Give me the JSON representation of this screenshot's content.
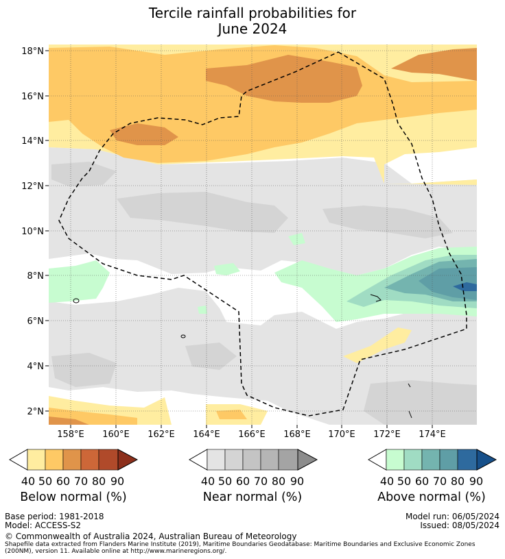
{
  "title_line1": "Tercile rainfall probabilities for",
  "title_line2": "June 2024",
  "map": {
    "lat_ticks": [
      "18°N",
      "16°N",
      "14°N",
      "12°N",
      "10°N",
      "8°N",
      "6°N",
      "4°N",
      "2°N"
    ],
    "lon_ticks": [
      "158°E",
      "160°E",
      "162°E",
      "164°E",
      "166°E",
      "168°E",
      "170°E",
      "172°E",
      "174°E"
    ],
    "colors": {
      "below_40": "#ffeda0",
      "below_50": "#fec965",
      "below_60": "#e0944a",
      "near_40": "#e4e4e4",
      "near_50": "#d4d4d4",
      "above_40": "#c7fcd0",
      "above_50": "#a0dcc3",
      "above_60": "#74b4af",
      "above_70": "#5f9ea6",
      "above_80": "#2e6a9e"
    }
  },
  "legends": [
    {
      "label": "Below normal (%)",
      "ticks": [
        "40",
        "50",
        "60",
        "70",
        "80",
        "90"
      ],
      "colors": [
        "#ffeda0",
        "#fec965",
        "#e0944a",
        "#cd6738",
        "#b04a2a",
        "#8c2f1b"
      ]
    },
    {
      "label": "Near normal (%)",
      "ticks": [
        "40",
        "50",
        "60",
        "70",
        "80",
        "90"
      ],
      "colors": [
        "#e4e4e4",
        "#d4d4d4",
        "#c4c4c4",
        "#b5b5b5",
        "#a4a4a4",
        "#8c8c8c"
      ]
    },
    {
      "label": "Above normal (%)",
      "ticks": [
        "40",
        "50",
        "60",
        "70",
        "80",
        "90"
      ],
      "colors": [
        "#c7fcd0",
        "#a0dcc3",
        "#74b4af",
        "#5f9ea6",
        "#2e6a9e",
        "#17508a"
      ]
    }
  ],
  "footer": {
    "base_period": "Base period: 1981-2018",
    "model": "Model: ACCESS-S2",
    "model_run": "Model run: 06/05/2024",
    "issued": "Issued: 08/05/2024",
    "copyright": "© Commonwealth of Australia 2024, Australian Bureau of Meteorology",
    "shapefile_1": "Shapefile data extracted from Flanders Marine Institute (2019), Maritime Boundaries Geodatabase: Maritime Boundaries and Exclusive Economic Zones",
    "shapefile_2": "(200NM), version 11. Available online at http://www.marineregions.org/."
  }
}
